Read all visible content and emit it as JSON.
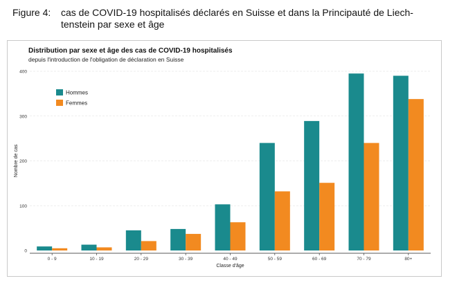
{
  "caption": {
    "label": "Figure 4:",
    "text": "cas de COVID-19 hospitalisés déclarés en Suisse et dans la Principauté de Liech-tenstein par sexe et âge"
  },
  "colors": {
    "hommes": "#1a8a8d",
    "femmes": "#f28a20"
  },
  "chart_data": {
    "type": "bar",
    "title": "Distribution par sexe et âge des cas de COVID-19 hospitalisés",
    "subtitle": "depuis l'introduction de l'obligation de déclaration en Suisse",
    "xlabel": "Classe d'âge",
    "ylabel": "Nombre de cas",
    "ylim": [
      0,
      400
    ],
    "yticks": [
      0,
      100,
      200,
      300,
      400
    ],
    "grid": "horizontal, dashed",
    "legend_position": "top-left",
    "categories": [
      "0 - 9",
      "10 - 19",
      "20 - 29",
      "30 - 39",
      "40 - 49",
      "50 - 59",
      "60 - 69",
      "70 - 79",
      "80+"
    ],
    "series": [
      {
        "name": "Hommes",
        "values": [
          9,
          13,
          45,
          48,
          103,
          240,
          289,
          395,
          390
        ]
      },
      {
        "name": "Femmes",
        "values": [
          5,
          7,
          21,
          37,
          63,
          132,
          151,
          240,
          338
        ]
      }
    ]
  }
}
